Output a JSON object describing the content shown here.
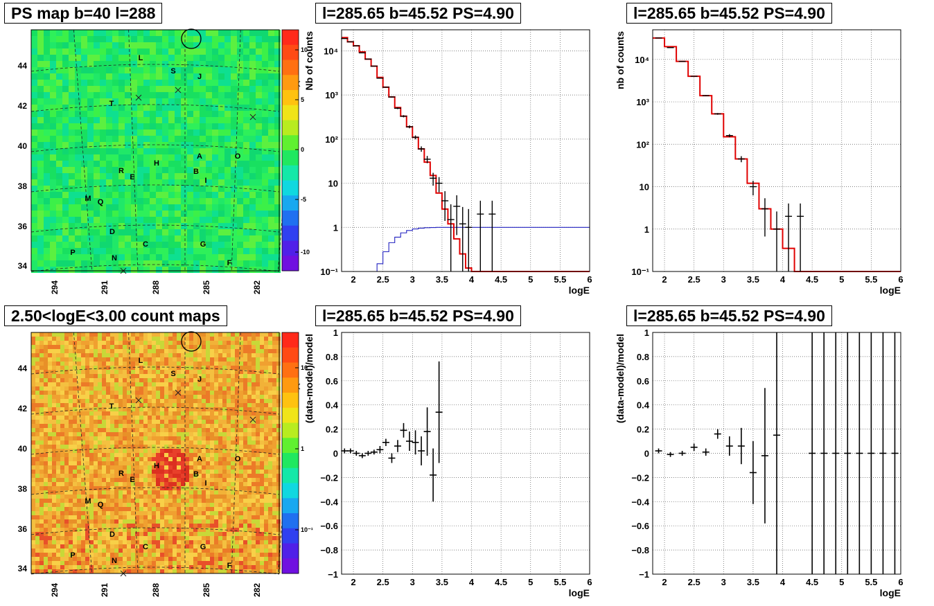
{
  "titles": {
    "ps_map": "PS map b=40 l=288",
    "count_map": "2.50<logE<3.00 count maps",
    "spec_a": "l=285.65 b=45.52 PS=4.90",
    "spec_b": "l=285.65 b=45.52 PS=4.90",
    "res_a": "l=285.65 b=45.52 PS=4.90",
    "res_b": "l=285.65 b=45.52 PS=4.90"
  },
  "map": {
    "lon_ticks": [
      "294",
      "291",
      "288",
      "285",
      "282"
    ],
    "lat_ticks": [
      "34",
      "36",
      "38",
      "40",
      "42",
      "44"
    ],
    "source_labels": [
      "L",
      "S",
      "J",
      "T",
      "A",
      "O",
      "H",
      "R",
      "E",
      "B",
      "I",
      "M",
      "Q",
      "D",
      "C",
      "G",
      "P",
      "N",
      "F"
    ],
    "ps_colorbar_ticks": [
      "10",
      "5",
      "0",
      "-5",
      "-10"
    ],
    "count_colorbar_ticks": [
      "10",
      "1",
      "10⁻¹"
    ],
    "colors": {
      "ps_bg": "#22e85a",
      "count_bg": "#f4b23c",
      "count_hot": "#e8402a"
    }
  },
  "chart_data": [
    {
      "type": "line",
      "panel": "spectrum-top-middle",
      "xlabel": "logE",
      "ylabel": "Nb of counts",
      "xlim": [
        1.8,
        6.0
      ],
      "ylim": [
        0.1,
        30000
      ],
      "yscale": "log",
      "x_ticks": [
        "2",
        "2.5",
        "3",
        "3.5",
        "4",
        "4.5",
        "5",
        "5.5",
        "6"
      ],
      "y_ticks": [
        "10⁻¹",
        "1",
        "10",
        "10²",
        "10³",
        "10⁴"
      ],
      "data_points": {
        "x": [
          1.85,
          1.95,
          2.05,
          2.15,
          2.25,
          2.35,
          2.45,
          2.55,
          2.65,
          2.75,
          2.85,
          2.95,
          3.05,
          3.15,
          3.25,
          3.35,
          3.45,
          3.55,
          3.65,
          3.75,
          3.85,
          3.95,
          4.15,
          4.35
        ],
        "y": [
          19000,
          16000,
          13000,
          9000,
          6500,
          4500,
          2400,
          1500,
          900,
          500,
          330,
          190,
          110,
          60,
          35,
          13,
          10,
          4,
          1.5,
          3,
          1.2,
          1,
          2,
          2
        ]
      },
      "model_red": {
        "x": [
          1.8,
          1.9,
          2.0,
          2.1,
          2.2,
          2.3,
          2.4,
          2.5,
          2.6,
          2.7,
          2.8,
          2.9,
          3.0,
          3.1,
          3.2,
          3.3,
          3.4,
          3.5,
          3.6,
          3.7,
          3.8,
          3.9,
          4.0,
          4.1,
          6.0
        ],
        "y": [
          20000,
          16000,
          13000,
          9500,
          6500,
          4500,
          2500,
          1500,
          900,
          520,
          330,
          190,
          110,
          60,
          30,
          15,
          6,
          2.6,
          1.2,
          0.55,
          0.25,
          0.12,
          0.1,
          0.1,
          0.1
        ]
      },
      "model_blue": {
        "x": [
          2.3,
          2.4,
          2.5,
          2.6,
          2.7,
          2.8,
          2.9,
          3.0,
          3.1,
          3.2,
          3.3,
          3.4,
          3.5,
          6.0
        ],
        "y": [
          0.1,
          0.15,
          0.28,
          0.45,
          0.6,
          0.75,
          0.85,
          0.92,
          0.96,
          0.98,
          0.99,
          1.0,
          1.0,
          1.0
        ]
      }
    },
    {
      "type": "line",
      "panel": "spectrum-top-right",
      "xlabel": "logE",
      "ylabel": "nb of counts",
      "xlim": [
        1.8,
        6.0
      ],
      "ylim": [
        0.1,
        50000
      ],
      "yscale": "log",
      "x_ticks": [
        "2",
        "2.5",
        "3",
        "3.5",
        "4",
        "4.5",
        "5",
        "5.5",
        "6"
      ],
      "y_ticks": [
        "10⁻¹",
        "1",
        "10",
        "10²",
        "10³",
        "10⁴"
      ],
      "data_points": {
        "x": [
          1.9,
          2.1,
          2.3,
          2.5,
          2.7,
          2.9,
          3.1,
          3.3,
          3.5,
          3.7,
          3.9,
          4.1,
          4.3
        ],
        "y": [
          32000,
          19000,
          9000,
          4000,
          1400,
          520,
          160,
          45,
          10,
          3,
          1,
          2,
          2
        ]
      },
      "model_red": {
        "x": [
          1.8,
          2.0,
          2.2,
          2.4,
          2.6,
          2.8,
          3.0,
          3.2,
          3.4,
          3.6,
          3.8,
          4.0,
          4.2,
          4.4,
          6.0
        ],
        "y": [
          32000,
          20000,
          9000,
          4000,
          1400,
          520,
          150,
          45,
          12,
          3,
          1,
          0.35,
          0.1,
          0.1,
          0.1
        ]
      }
    },
    {
      "type": "scatter",
      "panel": "residual-bottom-middle",
      "xlabel": "logE",
      "ylabel": "(data-model)/model",
      "xlim": [
        1.8,
        6.0
      ],
      "ylim": [
        -1,
        1
      ],
      "x_ticks": [
        "2",
        "2.5",
        "3",
        "3.5",
        "4",
        "4.5",
        "5",
        "5.5",
        "6"
      ],
      "y_ticks": [
        "−1",
        "−0.8",
        "−0.6",
        "−0.4",
        "−0.2",
        "0",
        "0.2",
        "0.4",
        "0.6",
        "0.8",
        "1"
      ],
      "x": [
        1.85,
        1.95,
        2.05,
        2.15,
        2.25,
        2.35,
        2.45,
        2.55,
        2.65,
        2.75,
        2.85,
        2.95,
        3.05,
        3.15,
        3.25,
        3.35,
        3.45
      ],
      "y": [
        0.02,
        0.02,
        0.0,
        -0.02,
        0.0,
        0.01,
        0.03,
        0.09,
        -0.04,
        0.06,
        0.19,
        0.1,
        0.09,
        0.02,
        0.18,
        -0.18,
        0.34
      ],
      "err": [
        0.02,
        0.02,
        0.02,
        0.02,
        0.02,
        0.02,
        0.03,
        0.03,
        0.04,
        0.05,
        0.06,
        0.08,
        0.1,
        0.12,
        0.2,
        0.22,
        0.42
      ]
    },
    {
      "type": "scatter",
      "panel": "residual-bottom-right",
      "xlabel": "logE",
      "ylabel": "(data-model)/model",
      "xlim": [
        1.8,
        6.0
      ],
      "ylim": [
        -1,
        1
      ],
      "x_ticks": [
        "2",
        "2.5",
        "3",
        "3.5",
        "4",
        "4.5",
        "5",
        "5.5",
        "6"
      ],
      "y_ticks": [
        "−1",
        "−0.8",
        "−0.6",
        "−0.4",
        "−0.2",
        "0",
        "0.2",
        "0.4",
        "0.6",
        "0.8",
        "1"
      ],
      "x": [
        1.9,
        2.1,
        2.3,
        2.5,
        2.7,
        2.9,
        3.1,
        3.3,
        3.5,
        3.7,
        3.9,
        4.5,
        4.7,
        4.9,
        5.1,
        5.3,
        5.5,
        5.7,
        5.9
      ],
      "y": [
        0.02,
        -0.01,
        0.0,
        0.05,
        0.01,
        0.16,
        0.06,
        0.06,
        -0.16,
        -0.02,
        0.15,
        0,
        0,
        0,
        0,
        0,
        0,
        0,
        0
      ],
      "err": [
        0.02,
        0.02,
        0.02,
        0.03,
        0.03,
        0.04,
        0.08,
        0.15,
        0.26,
        0.56,
        1.2,
        1.2,
        1.2,
        1.2,
        1.2,
        1.2,
        1.2,
        1.2,
        1.2
      ]
    }
  ]
}
